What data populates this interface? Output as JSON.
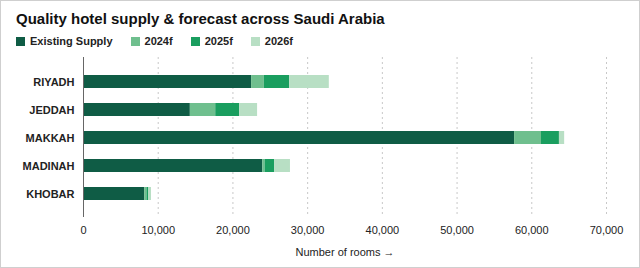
{
  "chart_data": {
    "type": "bar",
    "orientation": "horizontal",
    "stacked": true,
    "title": "Quality hotel supply & forecast across Saudi Arabia",
    "x_label": "Number of rooms",
    "categories": [
      "RIYADH",
      "JEDDAH",
      "MAKKAH",
      "MADINAH",
      "KHOBAR"
    ],
    "series": [
      {
        "name": "Existing Supply",
        "color": "#0f5c45",
        "values": [
          22500,
          14300,
          57700,
          24000,
          8200
        ]
      },
      {
        "name": "2024f",
        "color": "#6fbf8e",
        "values": [
          1700,
          3400,
          3600,
          300,
          300
        ]
      },
      {
        "name": "2025f",
        "color": "#1a9e5f",
        "values": [
          3400,
          3200,
          2400,
          1300,
          200
        ]
      },
      {
        "name": "2026f",
        "color": "#b8dfc4",
        "values": [
          5300,
          2400,
          700,
          2100,
          400
        ]
      }
    ],
    "xlim": [
      0,
      70000
    ],
    "xticks": [
      0,
      {
        "value": 10000,
        "label": "10,000"
      },
      {
        "value": 20000,
        "label": "20,000"
      },
      {
        "value": 30000,
        "label": "30,000"
      },
      {
        "value": 40000,
        "label": "40,000"
      },
      {
        "value": 50000,
        "label": "50,000"
      },
      {
        "value": 60000,
        "label": "60,000"
      },
      {
        "value": 70000,
        "label": "70,000"
      }
    ],
    "grid": true,
    "legend": "top"
  }
}
